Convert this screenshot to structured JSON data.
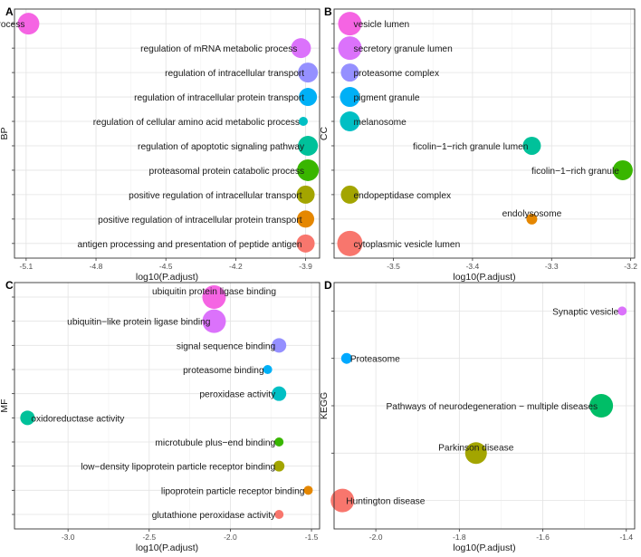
{
  "figure": {
    "xlabel": "log10(P.adjust)"
  },
  "chart_data": [
    {
      "type": "scatter",
      "panel_label": "A",
      "ylabel": "BP",
      "xlabel": "log10(P.adjust)",
      "xlim": [
        -5.15,
        -3.84
      ],
      "xticks": [
        -5.1,
        -4.8,
        -4.5,
        -4.2,
        -3.9
      ],
      "xtick_labels": [
        "-5.1",
        "-4.8",
        "-4.5",
        "-4.2",
        "-3.9"
      ],
      "label_side": "left",
      "points": [
        {
          "label": "regulation of protein catabolic process",
          "x": -5.09,
          "rank": 1,
          "size": 24,
          "color": "#F564E3"
        },
        {
          "label": "regulation of mRNA metabolic process",
          "x": -3.92,
          "rank": 2,
          "size": 22,
          "color": "#DB72FB"
        },
        {
          "label": "regulation of intracellular transport",
          "x": -3.89,
          "rank": 3,
          "size": 22,
          "color": "#9590FF"
        },
        {
          "label": "regulation of intracellular protein transport",
          "x": -3.89,
          "rank": 4,
          "size": 20,
          "color": "#00B0F6"
        },
        {
          "label": "regulation of cellular amino acid metabolic process",
          "x": -3.91,
          "rank": 5,
          "size": 10,
          "color": "#00BFC4"
        },
        {
          "label": "regulation of apoptotic signaling pathway",
          "x": -3.89,
          "rank": 6,
          "size": 22,
          "color": "#00C19A"
        },
        {
          "label": "proteasomal protein catabolic process",
          "x": -3.89,
          "rank": 7,
          "size": 24,
          "color": "#39B600"
        },
        {
          "label": "positive regulation of intracellular transport",
          "x": -3.9,
          "rank": 8,
          "size": 20,
          "color": "#A3A500"
        },
        {
          "label": "positive regulation of intracellular protein transport",
          "x": -3.9,
          "rank": 9,
          "size": 19,
          "color": "#E58700"
        },
        {
          "label": "antigen processing and presentation of peptide antigen",
          "x": -3.9,
          "rank": 10,
          "size": 20,
          "color": "#F8766D"
        }
      ]
    },
    {
      "type": "scatter",
      "panel_label": "B",
      "ylabel": "CC",
      "xlabel": "log10(P.adjust)",
      "xlim": [
        -3.575,
        -3.195
      ],
      "xticks": [
        -3.5,
        -3.4,
        -3.3,
        -3.2
      ],
      "xtick_labels": [
        "-3.5",
        "-3.4",
        "-3.3",
        "-3.2"
      ],
      "label_side": "mixed",
      "points": [
        {
          "label": "vesicle lumen",
          "x": -3.555,
          "rank": 1,
          "size": 26,
          "color": "#F564E3",
          "label_pos": "right"
        },
        {
          "label": "secretory granule lumen",
          "x": -3.555,
          "rank": 2,
          "size": 26,
          "color": "#DB72FB",
          "label_pos": "right"
        },
        {
          "label": "proteasome complex",
          "x": -3.555,
          "rank": 3,
          "size": 20,
          "color": "#9590FF",
          "label_pos": "right"
        },
        {
          "label": "pigment granule",
          "x": -3.555,
          "rank": 4,
          "size": 22,
          "color": "#00B0F6",
          "label_pos": "right"
        },
        {
          "label": "melanosome",
          "x": -3.555,
          "rank": 5,
          "size": 22,
          "color": "#00BFC4",
          "label_pos": "right"
        },
        {
          "label": "ficolin−1−rich granule lumen",
          "x": -3.325,
          "rank": 6,
          "size": 20,
          "color": "#00C19A",
          "label_pos": "left"
        },
        {
          "label": "ficolin−1−rich granule",
          "x": -3.21,
          "rank": 7,
          "size": 22,
          "color": "#39B600",
          "label_pos": "left"
        },
        {
          "label": "endopeptidase complex",
          "x": -3.555,
          "rank": 8,
          "size": 20,
          "color": "#A3A500",
          "label_pos": "right"
        },
        {
          "label": "endolysosome",
          "x": -3.325,
          "rank": 9,
          "size": 12,
          "color": "#E58700",
          "label_pos": "above"
        },
        {
          "label": "cytoplasmic vesicle lumen",
          "x": -3.555,
          "rank": 10,
          "size": 28,
          "color": "#F8766D",
          "label_pos": "right"
        }
      ]
    },
    {
      "type": "scatter",
      "panel_label": "C",
      "ylabel": "MF",
      "xlabel": "log10(P.adjust)",
      "xlim": [
        -3.33,
        -1.45
      ],
      "xticks": [
        -3.0,
        -2.5,
        -2.0,
        -1.5
      ],
      "xtick_labels": [
        "-3.0",
        "-2.5",
        "-2.0",
        "-1.5"
      ],
      "label_side": "mixed",
      "points": [
        {
          "label": "ubiquitin protein ligase binding",
          "x": -2.1,
          "rank": 1,
          "size": 26,
          "color": "#F564E3",
          "label_pos": "above"
        },
        {
          "label": "ubiquitin−like protein ligase binding",
          "x": -2.1,
          "rank": 2,
          "size": 26,
          "color": "#DB72FB",
          "label_pos": "left"
        },
        {
          "label": "signal sequence binding",
          "x": -1.7,
          "rank": 3,
          "size": 16,
          "color": "#9590FF",
          "label_pos": "left"
        },
        {
          "label": "proteasome binding",
          "x": -1.77,
          "rank": 4,
          "size": 10,
          "color": "#00B0F6",
          "label_pos": "left"
        },
        {
          "label": "peroxidase activity",
          "x": -1.7,
          "rank": 5,
          "size": 16,
          "color": "#00BFC4",
          "label_pos": "left"
        },
        {
          "label": "oxidoreductase activity",
          "x": -3.25,
          "rank": 6,
          "size": 16,
          "color": "#00C19A",
          "label_pos": "right"
        },
        {
          "label": "microtubule plus−end binding",
          "x": -1.7,
          "rank": 7,
          "size": 10,
          "color": "#39B600",
          "label_pos": "left"
        },
        {
          "label": "low−density lipoprotein particle receptor binding",
          "x": -1.7,
          "rank": 8,
          "size": 12,
          "color": "#A3A500",
          "label_pos": "left"
        },
        {
          "label": "lipoprotein particle receptor binding",
          "x": -1.52,
          "rank": 9,
          "size": 10,
          "color": "#E58700",
          "label_pos": "left"
        },
        {
          "label": "glutathione peroxidase activity",
          "x": -1.7,
          "rank": 10,
          "size": 10,
          "color": "#F8766D",
          "label_pos": "left"
        }
      ]
    },
    {
      "type": "scatter",
      "panel_label": "D",
      "ylabel": "KEGG",
      "xlabel": "log10(P.adjust)",
      "xlim": [
        -2.1,
        -1.38
      ],
      "xticks": [
        -2.0,
        -1.8,
        -1.6,
        -1.4
      ],
      "xtick_labels": [
        "-2.0",
        "-1.8",
        "-1.6",
        "-1.4"
      ],
      "label_side": "mixed",
      "points": [
        {
          "label": "Synaptic vesicle",
          "x": -1.41,
          "rank": 1,
          "size": 10,
          "color": "#DB72FB",
          "label_pos": "left"
        },
        {
          "label": "Proteasome",
          "x": -2.07,
          "rank": 2,
          "size": 12,
          "color": "#00A9FF",
          "label_pos": "right"
        },
        {
          "label": "Pathways of neurodegeneration − multiple diseases",
          "x": -1.46,
          "rank": 3,
          "size": 26,
          "color": "#00BE67",
          "label_pos": "left"
        },
        {
          "label": "Parkinson disease",
          "x": -1.76,
          "rank": 4,
          "size": 24,
          "color": "#A3A500",
          "label_pos": "above"
        },
        {
          "label": "Huntington disease",
          "x": -2.08,
          "rank": 5,
          "size": 26,
          "color": "#F8766D",
          "label_pos": "right"
        }
      ]
    }
  ]
}
